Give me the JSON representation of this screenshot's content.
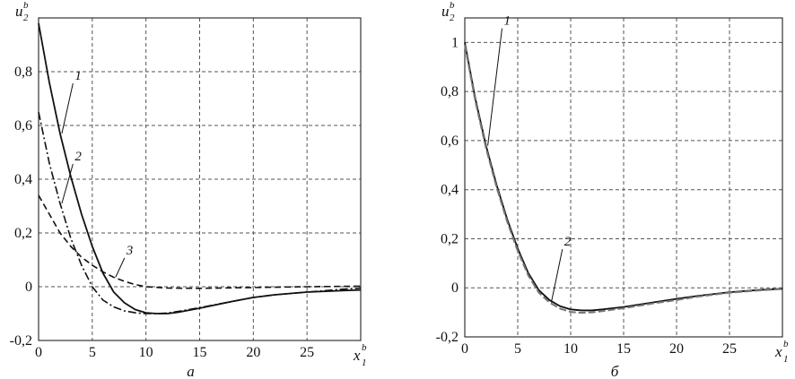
{
  "chart_data": [
    {
      "type": "line",
      "panel_label": "а",
      "ylabel": "u",
      "ylabel_sub": "2",
      "ylabel_sup": "b",
      "xlabel": "x",
      "xlabel_sub": "1",
      "xlabel_sup": "b",
      "xlim": [
        0,
        30
      ],
      "ylim": [
        -0.2,
        1.0
      ],
      "x_ticks": [
        "0",
        "5",
        "10",
        "15",
        "20",
        "25"
      ],
      "y_ticks": [
        "-0,2",
        "0",
        "0,2",
        "0,4",
        "0,6",
        "0,8"
      ],
      "grid": true,
      "series": [
        {
          "name": "1",
          "style": "solid",
          "x": [
            0,
            1,
            2,
            3,
            4,
            5,
            6,
            7,
            8,
            9,
            10,
            11,
            12,
            13,
            15,
            18,
            20,
            22,
            25,
            28,
            30
          ],
          "y": [
            0.98,
            0.76,
            0.57,
            0.41,
            0.27,
            0.15,
            0.05,
            -0.02,
            -0.06,
            -0.085,
            -0.097,
            -0.1,
            -0.1,
            -0.095,
            -0.08,
            -0.055,
            -0.04,
            -0.03,
            -0.02,
            -0.015,
            -0.012
          ]
        },
        {
          "name": "2",
          "style": "dashdot",
          "x": [
            0,
            1,
            2,
            3,
            4,
            5,
            6,
            7,
            8,
            9,
            10,
            11,
            12,
            13,
            15,
            18,
            20,
            22,
            25,
            28,
            30
          ],
          "y": [
            0.65,
            0.46,
            0.31,
            0.18,
            0.08,
            0.0,
            -0.05,
            -0.075,
            -0.09,
            -0.097,
            -0.1,
            -0.1,
            -0.098,
            -0.092,
            -0.078,
            -0.055,
            -0.04,
            -0.03,
            -0.02,
            -0.01,
            -0.005
          ]
        },
        {
          "name": "3",
          "style": "dashed",
          "x": [
            0,
            1,
            2,
            3,
            4,
            5,
            6,
            7,
            8,
            9,
            10,
            12,
            15,
            20,
            25,
            30
          ],
          "y": [
            0.34,
            0.27,
            0.2,
            0.15,
            0.11,
            0.08,
            0.055,
            0.035,
            0.02,
            0.008,
            0.0,
            -0.005,
            -0.006,
            -0.003,
            0.0,
            0.002
          ]
        }
      ],
      "curve_labels": [
        {
          "text": "1",
          "series": "1",
          "x": 2.2,
          "y": 0.75
        },
        {
          "text": "2",
          "series": "2",
          "x": 2.2,
          "y": 0.45
        },
        {
          "text": "3",
          "series": "3",
          "x": 7.0,
          "y": 0.1
        }
      ]
    },
    {
      "type": "line",
      "panel_label": "б",
      "ylabel": "u",
      "ylabel_sub": "2",
      "ylabel_sup": "b",
      "xlabel": "x",
      "xlabel_sub": "1",
      "xlabel_sup": "b",
      "xlim": [
        0,
        30
      ],
      "ylim": [
        -0.2,
        1.1
      ],
      "x_ticks": [
        "0",
        "5",
        "10",
        "15",
        "20",
        "25"
      ],
      "y_ticks": [
        "-0,2",
        "0",
        "0,2",
        "0,4",
        "0,6",
        "0,8",
        "1"
      ],
      "grid": true,
      "series": [
        {
          "name": "1",
          "style": "solid",
          "x": [
            0,
            1,
            2,
            3,
            4,
            5,
            6,
            7,
            8,
            9,
            10,
            11,
            12,
            13,
            15,
            18,
            20,
            22,
            25,
            28,
            30
          ],
          "y": [
            1.0,
            0.77,
            0.58,
            0.42,
            0.28,
            0.16,
            0.06,
            -0.01,
            -0.05,
            -0.075,
            -0.088,
            -0.092,
            -0.092,
            -0.088,
            -0.078,
            -0.058,
            -0.045,
            -0.033,
            -0.018,
            -0.008,
            -0.004
          ]
        },
        {
          "name": "2",
          "style": "dashed-gray",
          "x": [
            0,
            1,
            2,
            3,
            4,
            5,
            6,
            7,
            8,
            9,
            10,
            11,
            12,
            13,
            15,
            18,
            20,
            22,
            25,
            28,
            30
          ],
          "y": [
            0.99,
            0.76,
            0.57,
            0.41,
            0.27,
            0.15,
            0.05,
            -0.02,
            -0.06,
            -0.085,
            -0.098,
            -0.102,
            -0.1,
            -0.095,
            -0.083,
            -0.062,
            -0.05,
            -0.036,
            -0.02,
            -0.01,
            -0.005
          ]
        }
      ],
      "curve_labels": [
        {
          "text": "1",
          "series": "1",
          "x": 2.5,
          "y": 1.05
        },
        {
          "text": "2",
          "series": "2",
          "x": 8.2,
          "y": 0.15
        }
      ]
    }
  ]
}
